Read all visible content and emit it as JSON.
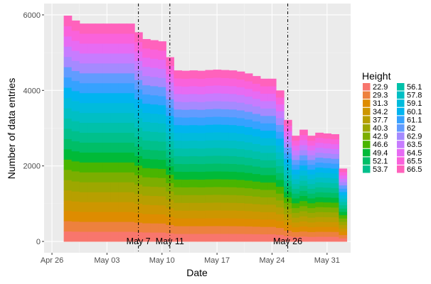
{
  "chart_data": {
    "type": "area",
    "stacked": true,
    "xlabel": "Date",
    "ylabel": "Number of data entries",
    "x_range": [
      "2020-04-25",
      "2020-06-03"
    ],
    "ylim": [
      -300,
      6300
    ],
    "x_ticks": [
      {
        "date": "2020-04-26",
        "label": "Apr 26"
      },
      {
        "date": "2020-05-03",
        "label": "May 03"
      },
      {
        "date": "2020-05-10",
        "label": "May 10"
      },
      {
        "date": "2020-05-17",
        "label": "May 17"
      },
      {
        "date": "2020-05-24",
        "label": "May 24"
      },
      {
        "date": "2020-05-31",
        "label": "May 31"
      }
    ],
    "y_ticks": [
      0,
      2000,
      4000,
      6000
    ],
    "legend": {
      "title": "Height",
      "position": "right",
      "columns": 2
    },
    "annotations": [
      {
        "date": "2020-05-07",
        "label": "May 7"
      },
      {
        "date": "2020-05-11",
        "label": "May 11"
      },
      {
        "date": "2020-05-26",
        "label": "May 26"
      }
    ],
    "dates": [
      "2020-04-28",
      "2020-04-29",
      "2020-04-30",
      "2020-05-01",
      "2020-05-02",
      "2020-05-03",
      "2020-05-04",
      "2020-05-05",
      "2020-05-06",
      "2020-05-07",
      "2020-05-08",
      "2020-05-09",
      "2020-05-10",
      "2020-05-11",
      "2020-05-12",
      "2020-05-13",
      "2020-05-14",
      "2020-05-15",
      "2020-05-16",
      "2020-05-17",
      "2020-05-18",
      "2020-05-19",
      "2020-05-20",
      "2020-05-21",
      "2020-05-22",
      "2020-05-23",
      "2020-05-24",
      "2020-05-25",
      "2020-05-26",
      "2020-05-27",
      "2020-05-28",
      "2020-05-29",
      "2020-05-30",
      "2020-05-31",
      "2020-06-01",
      "2020-06-02"
    ],
    "totals": [
      5980,
      5850,
      5770,
      5770,
      5770,
      5770,
      5770,
      5770,
      5770,
      5540,
      5360,
      5330,
      5300,
      4880,
      4530,
      4520,
      4530,
      4520,
      4540,
      4550,
      4540,
      4530,
      4500,
      4450,
      4380,
      4310,
      4310,
      4000,
      3220,
      2800,
      2960,
      2800,
      2880,
      2860,
      2840,
      1930
    ],
    "series": [
      {
        "name": "22.9",
        "color": "#F8766D"
      },
      {
        "name": "29.3",
        "color": "#ED813E"
      },
      {
        "name": "31.3",
        "color": "#DE8C00"
      },
      {
        "name": "34.2",
        "color": "#CD9600"
      },
      {
        "name": "37.7",
        "color": "#B79F00"
      },
      {
        "name": "40.3",
        "color": "#9DA700"
      },
      {
        "name": "42.9",
        "color": "#7CAE00"
      },
      {
        "name": "46.6",
        "color": "#49B500"
      },
      {
        "name": "49.4",
        "color": "#00BA38"
      },
      {
        "name": "52.1",
        "color": "#00BE67"
      },
      {
        "name": "53.7",
        "color": "#00C08B"
      },
      {
        "name": "56.1",
        "color": "#00C1A9"
      },
      {
        "name": "57.8",
        "color": "#00BFC4"
      },
      {
        "name": "59.1",
        "color": "#00BBDC"
      },
      {
        "name": "60.1",
        "color": "#00B4F0"
      },
      {
        "name": "61.1",
        "color": "#35A2FF"
      },
      {
        "name": "62",
        "color": "#619CFF"
      },
      {
        "name": "62.9",
        "color": "#A58AFF"
      },
      {
        "name": "63.5",
        "color": "#C77CFF"
      },
      {
        "name": "64.5",
        "color": "#E76BF3"
      },
      {
        "name": "65.5",
        "color": "#FA62DB"
      },
      {
        "name": "66.5",
        "color": "#FF62BC"
      }
    ]
  }
}
